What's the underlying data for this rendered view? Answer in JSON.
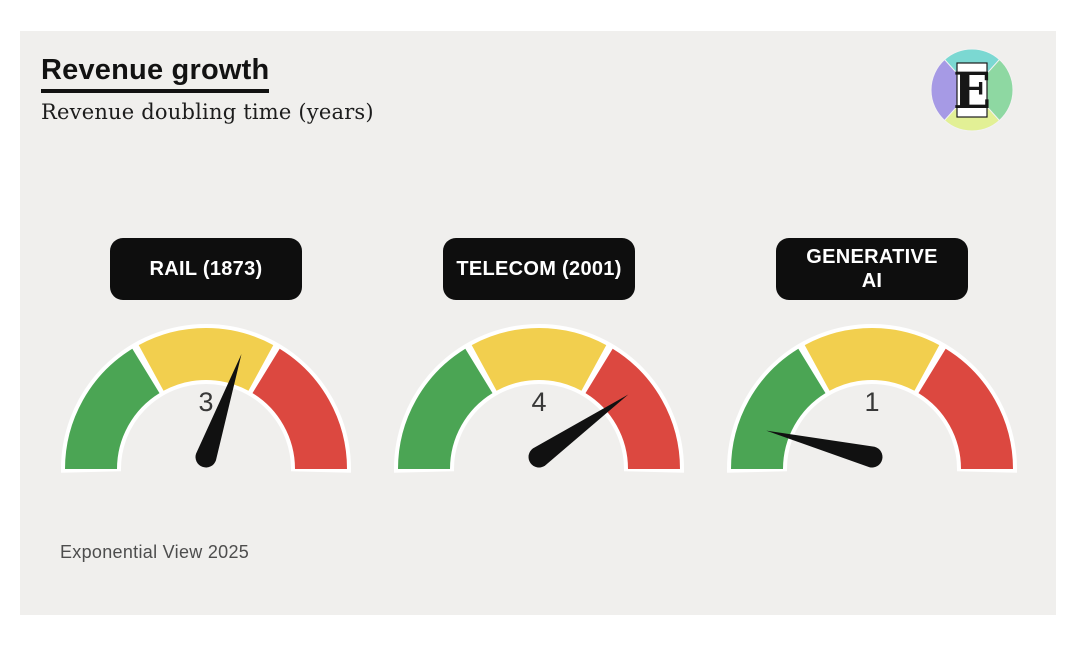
{
  "page": {
    "background": "#ffffff",
    "card_background": "#F0EFED"
  },
  "header": {
    "title": "Revenue growth",
    "subtitle": "Revenue doubling time (years)"
  },
  "logo": {
    "letter": "E",
    "colors": {
      "top": "#7BD8D2",
      "left": "#A69AE5",
      "right": "#8ED8A2",
      "bottom": "#E2F095"
    }
  },
  "footer": {
    "credit": "Exponential View 2025"
  },
  "chart_data": {
    "type": "gauge",
    "title": "Revenue growth",
    "subtitle": "Revenue doubling time (years)",
    "unit": "years",
    "needle_color": "#111111",
    "halo_color": "#ffffff",
    "segments": [
      {
        "name": "green",
        "color": "#4BA554",
        "start_deg": 180,
        "end_deg": 121.5
      },
      {
        "name": "yellow",
        "color": "#F2CF4E",
        "start_deg": 118.5,
        "end_deg": 61.5
      },
      {
        "name": "red",
        "color": "#DC4840",
        "start_deg": 58.5,
        "end_deg": 0
      }
    ],
    "gauges": [
      {
        "label": "RAIL (1873)",
        "value": 3,
        "needle_angle_deg": 71
      },
      {
        "label": "TELECOM (2001)",
        "value": 4,
        "needle_angle_deg": 35
      },
      {
        "label": "GENERATIVE\nAI",
        "value": 1,
        "needle_angle_deg": 166
      }
    ]
  }
}
